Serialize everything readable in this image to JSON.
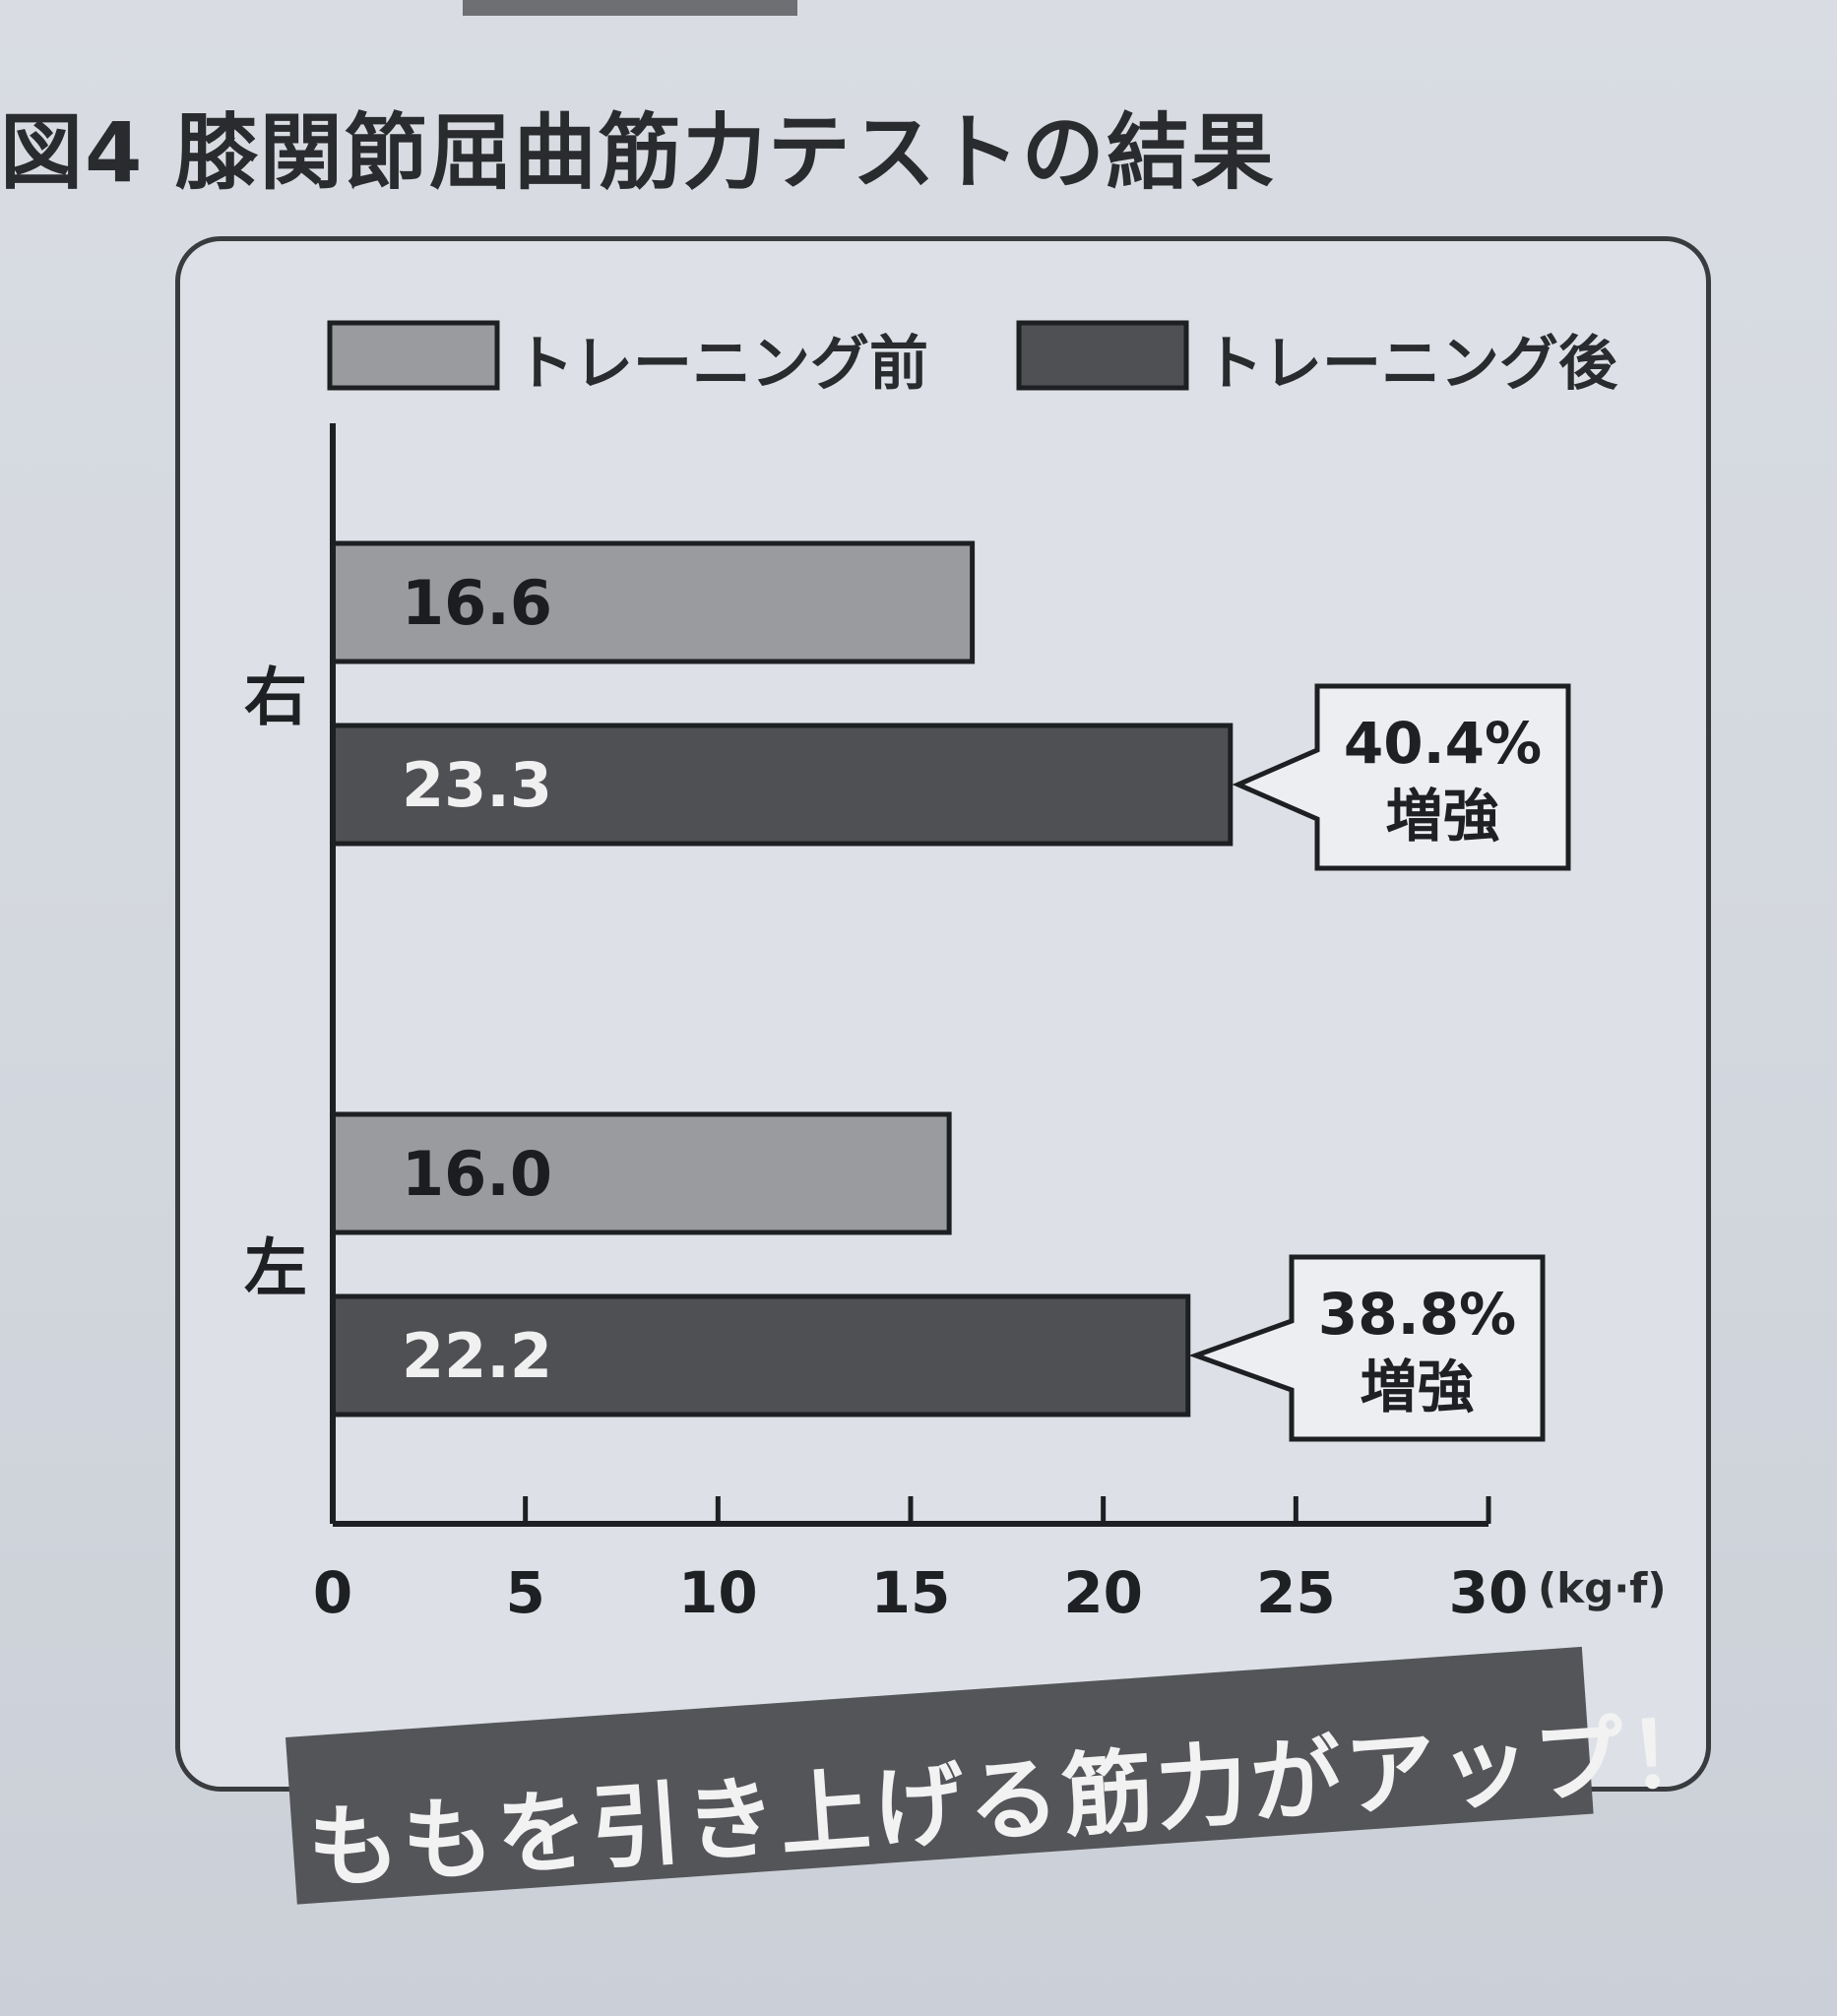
{
  "figure_title": "図4 膝関節屈曲筋力テストの結果",
  "banner_text": "ももを引き上げる筋力がアップ！",
  "colors": {
    "before": "#9a9b9e",
    "after": "#4f5054",
    "axis": "#1e1f22"
  },
  "chart_data": {
    "type": "bar",
    "orientation": "horizontal",
    "title": "図4 膝関節屈曲筋力テストの結果",
    "categories": [
      "右",
      "左"
    ],
    "series": [
      {
        "name": "トレーニング前",
        "values": [
          16.6,
          16.0
        ],
        "labels": [
          "16.6",
          "16.0"
        ]
      },
      {
        "name": "トレーニング後",
        "values": [
          23.3,
          22.2
        ],
        "labels": [
          "23.3",
          "22.2"
        ]
      }
    ],
    "annotations": [
      {
        "category": "右",
        "line1": "40.4%",
        "line2": "増強"
      },
      {
        "category": "左",
        "line1": "38.8%",
        "line2": "増強"
      }
    ],
    "xlim": [
      0,
      30
    ],
    "xticks": [
      "0",
      "5",
      "10",
      "15",
      "20",
      "25",
      "30"
    ],
    "xunit": "(kg·f)",
    "legend_position": "top",
    "grid": false
  }
}
